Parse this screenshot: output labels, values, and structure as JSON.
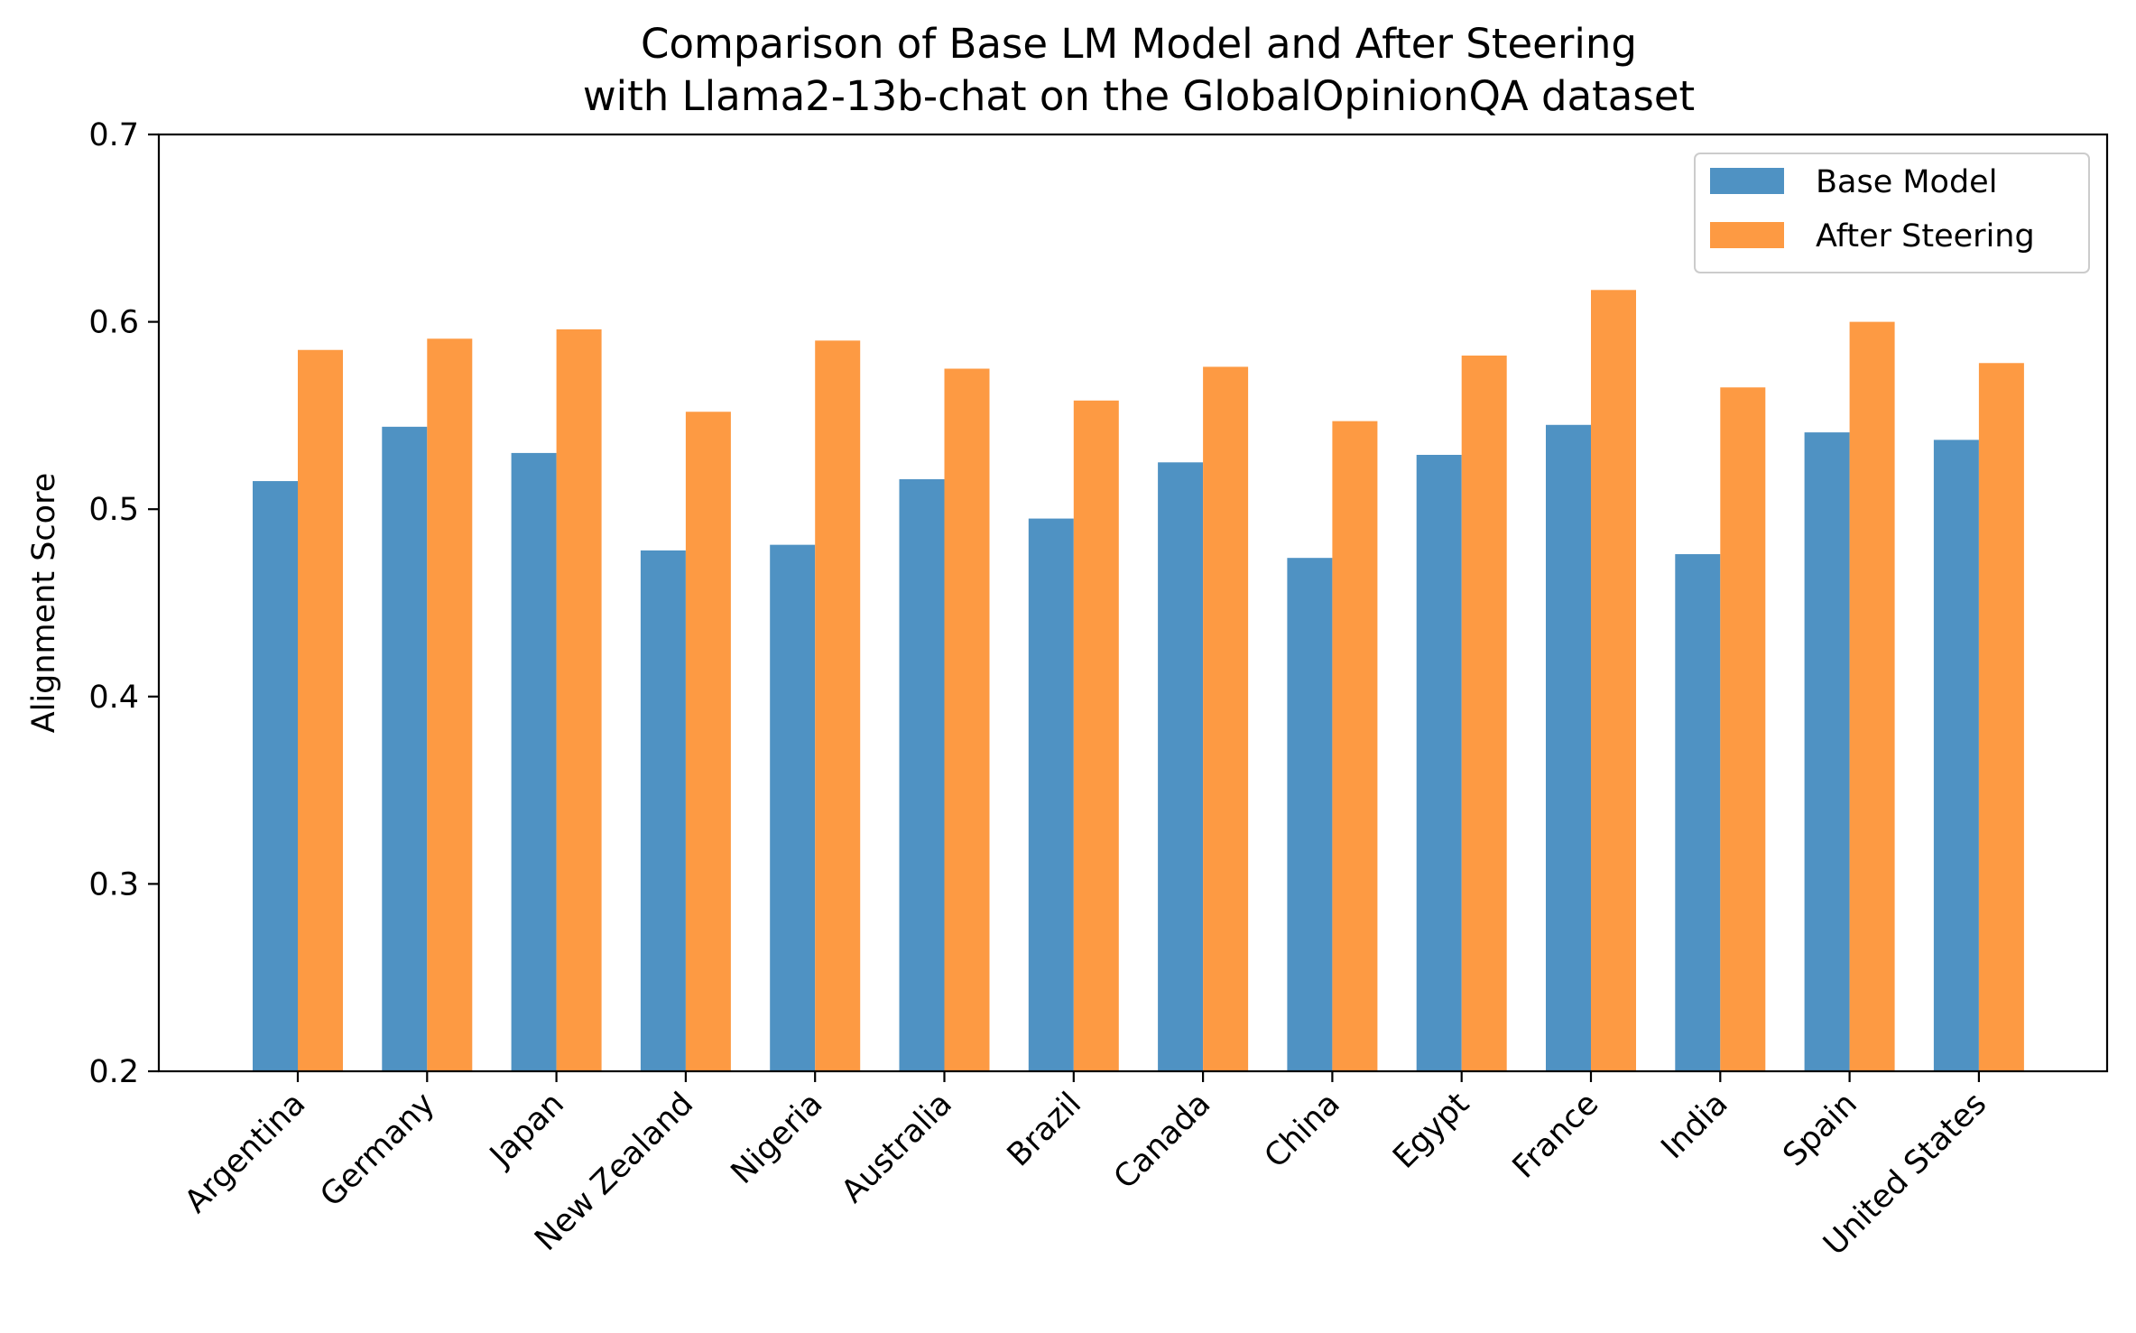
{
  "chart_data": {
    "type": "bar",
    "title": "Comparison of Base LM Model and After Steering",
    "subtitle": "with Llama2-13b-chat on the GlobalOpinionQA dataset",
    "xlabel": "",
    "ylabel": "Alignment Score",
    "ylim": [
      0.2,
      0.7
    ],
    "yticks": [
      "0.2",
      "0.3",
      "0.4",
      "0.5",
      "0.6",
      "0.7"
    ],
    "grid": false,
    "legend_position": "top-right",
    "categories": [
      "Argentina",
      "Germany",
      "Japan",
      "New Zealand",
      "Nigeria",
      "Australia",
      "Brazil",
      "Canada",
      "China",
      "Egypt",
      "France",
      "India",
      "Spain",
      "United States"
    ],
    "series": [
      {
        "name": "Base Model",
        "color": "#4f92c3",
        "values": [
          0.515,
          0.544,
          0.53,
          0.478,
          0.481,
          0.516,
          0.495,
          0.525,
          0.474,
          0.529,
          0.545,
          0.476,
          0.541,
          0.537
        ]
      },
      {
        "name": "After Steering",
        "color": "#fd9a43",
        "values": [
          0.585,
          0.591,
          0.596,
          0.552,
          0.59,
          0.575,
          0.558,
          0.576,
          0.547,
          0.582,
          0.617,
          0.565,
          0.6,
          0.578
        ]
      }
    ]
  }
}
